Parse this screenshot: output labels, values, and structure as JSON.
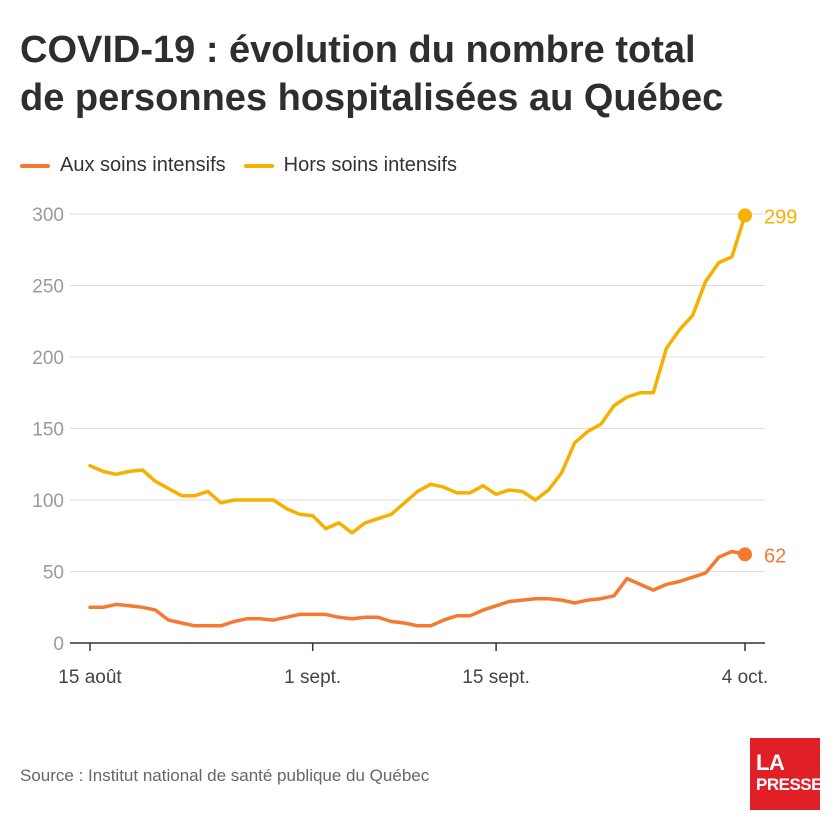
{
  "title": [
    "COVID-19 : évolution du nombre total",
    "de personnes hospitalisées au Québec"
  ],
  "source": "Source : Institut national de santé publique du Québec",
  "logo": {
    "line1": "LA",
    "line2": "PRESSE"
  },
  "chart_data": {
    "type": "line",
    "title": "COVID-19 : évolution du nombre total de personnes hospitalisées au Québec",
    "x_start": "2020-08-15",
    "x_ticks": [
      {
        "day": 0,
        "label": "15 août"
      },
      {
        "day": 17,
        "label": "1 sept."
      },
      {
        "day": 31,
        "label": "15 sept."
      },
      {
        "day": 50,
        "label": "4 oct."
      }
    ],
    "ylim": [
      0,
      300
    ],
    "y_ticks": [
      0,
      50,
      100,
      150,
      200,
      250,
      300
    ],
    "grid": true,
    "legend_position": "top-left",
    "series": [
      {
        "name": "Aux soins intensifs",
        "color": "#f47a32",
        "end_label": "62",
        "values": [
          25,
          25,
          27,
          26,
          25,
          23,
          16,
          14,
          12,
          12,
          12,
          15,
          17,
          17,
          16,
          18,
          20,
          20,
          20,
          18,
          17,
          18,
          18,
          15,
          14,
          12,
          12,
          16,
          19,
          19,
          23,
          26,
          29,
          30,
          31,
          31,
          30,
          28,
          30,
          31,
          33,
          45,
          41,
          37,
          41,
          43,
          46,
          49,
          60,
          64,
          62
        ]
      },
      {
        "name": "Hors soins intensifs",
        "color": "#f5b000",
        "end_label": "299",
        "values": [
          124,
          120,
          118,
          120,
          121,
          113,
          108,
          103,
          103,
          106,
          98,
          100,
          100,
          100,
          100,
          94,
          90,
          89,
          80,
          84,
          77,
          84,
          87,
          90,
          98,
          106,
          111,
          109,
          105,
          105,
          110,
          104,
          107,
          106,
          100,
          107,
          119,
          140,
          148,
          153,
          166,
          172,
          175,
          175,
          206,
          219,
          229,
          253,
          266,
          270,
          299
        ]
      }
    ]
  }
}
